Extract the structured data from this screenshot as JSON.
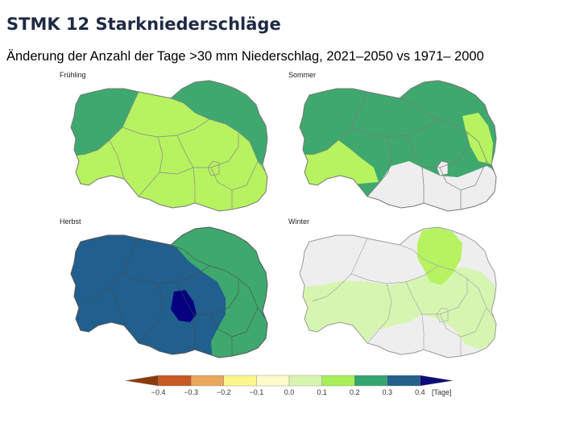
{
  "slide": {
    "title": "STMK 12 Starkniederschläge",
    "subtitle": "Änderung der Anzahl der Tage >30 mm Niederschlag, 2021–2050 vs 1971– 2000"
  },
  "maps": {
    "spring": {
      "label": "Frühling"
    },
    "summer": {
      "label": "Sommer"
    },
    "autumn": {
      "label": "Herbst"
    },
    "winter": {
      "label": "Winter"
    }
  },
  "legend": {
    "unit": "[Tage]",
    "ticks": [
      "−0.4",
      "−0.3",
      "−0.2",
      "−0.1",
      "0.0",
      "0.1",
      "0.2",
      "0.3",
      "0.4"
    ],
    "colors": [
      "#8c3a0c",
      "#c65a22",
      "#e7a85c",
      "#fdf48c",
      "#fdfbc9",
      "#d8f5b0",
      "#a8ee58",
      "#35a56f",
      "#21618c",
      "#0a0a78"
    ]
  },
  "colors": {
    "outline": "#777777",
    "no_change": "#eeeeee",
    "light_green": "#b7f260",
    "pale_green": "#d6f5b0",
    "mid_green": "#3fa86e",
    "blue": "#215f8e",
    "dark_blue": "#060080"
  }
}
